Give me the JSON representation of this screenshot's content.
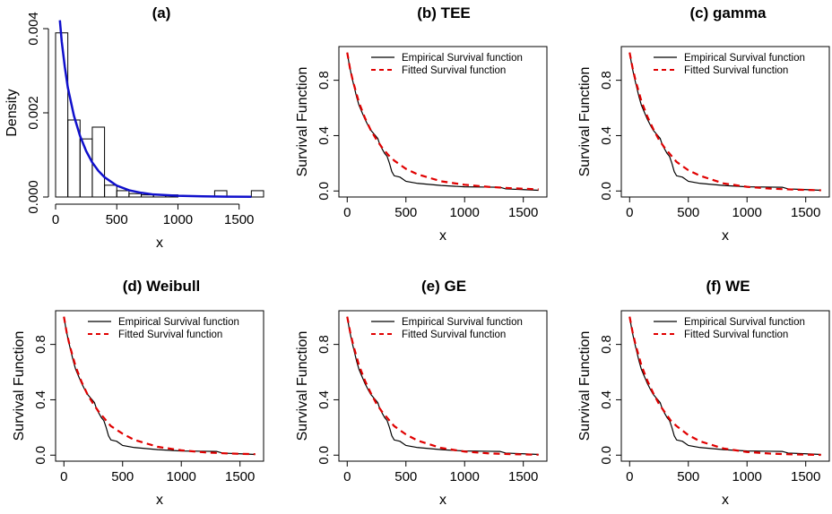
{
  "colors": {
    "empirical": "#000000",
    "fitted": "#e00000",
    "density": "#1010cc",
    "bars": "#000000"
  },
  "chart_data": [
    {
      "id": "a",
      "type": "histogram",
      "title": "(a)",
      "xlabel": "x",
      "ylabel": "Density",
      "xlim": [
        0,
        1700
      ],
      "ylim": [
        0,
        0.004
      ],
      "xticks": [
        0,
        500,
        1000,
        1500
      ],
      "yticks": [
        0.0,
        0.002,
        0.004
      ],
      "ytick_labels": [
        "0.000",
        "0.002",
        "0.004"
      ],
      "bins": [
        {
          "x0": 0,
          "x1": 100,
          "density": 0.0039
        },
        {
          "x0": 100,
          "x1": 200,
          "density": 0.00183
        },
        {
          "x0": 200,
          "x1": 300,
          "density": 0.00138
        },
        {
          "x0": 300,
          "x1": 400,
          "density": 0.00166
        },
        {
          "x0": 400,
          "x1": 500,
          "density": 0.00028
        },
        {
          "x0": 500,
          "x1": 600,
          "density": 0.00015
        },
        {
          "x0": 600,
          "x1": 700,
          "density": 8e-05
        },
        {
          "x0": 700,
          "x1": 800,
          "density": 5e-05
        },
        {
          "x0": 800,
          "x1": 900,
          "density": 5e-05
        },
        {
          "x0": 900,
          "x1": 1000,
          "density": 5e-05
        },
        {
          "x0": 1300,
          "x1": 1400,
          "density": 0.00015
        },
        {
          "x0": 1600,
          "x1": 1700,
          "density": 0.00015
        }
      ],
      "density_curve": {
        "x": [
          35,
          50,
          75,
          100,
          150,
          200,
          250,
          300,
          350,
          400,
          500,
          600,
          700,
          800,
          1000,
          1200,
          1400,
          1600
        ],
        "y": [
          0.0042,
          0.0037,
          0.0031,
          0.0026,
          0.00193,
          0.00145,
          0.00109,
          0.00082,
          0.00062,
          0.00047,
          0.00027,
          0.00016,
          0.0001,
          6e-05,
          3e-05,
          1.5e-05,
          8e-06,
          4e-06
        ]
      }
    },
    {
      "id": "b",
      "type": "line",
      "title": "(b) TEE",
      "xlabel": "x",
      "ylabel": "Survival Function",
      "xlim": [
        0,
        1630
      ],
      "ylim": [
        0,
        1
      ],
      "xticks": [
        0,
        500,
        1000,
        1500
      ],
      "yticks": [
        0.0,
        0.4,
        0.8
      ],
      "ytick_labels": [
        "0.0",
        "0.4",
        "0.8"
      ],
      "legend": [
        "Empirical Survival function",
        "Fitted Survival function"
      ],
      "legend_position": "top-right",
      "series": [
        {
          "name": "Empirical Survival function",
          "style": "solid",
          "x": [
            0,
            20,
            40,
            60,
            80,
            100,
            120,
            150,
            180,
            200,
            230,
            260,
            280,
            300,
            320,
            340,
            360,
            380,
            400,
            450,
            500,
            600,
            800,
            1000,
            1200,
            1300,
            1350,
            1500,
            1630
          ],
          "y": [
            1.0,
            0.9,
            0.82,
            0.75,
            0.68,
            0.62,
            0.58,
            0.52,
            0.47,
            0.44,
            0.41,
            0.38,
            0.33,
            0.3,
            0.27,
            0.25,
            0.2,
            0.14,
            0.11,
            0.1,
            0.07,
            0.055,
            0.04,
            0.03,
            0.028,
            0.027,
            0.015,
            0.01,
            0.005
          ]
        },
        {
          "name": "Fitted Survival function",
          "style": "dashed",
          "x": [
            0,
            25,
            50,
            100,
            150,
            200,
            250,
            300,
            350,
            400,
            500,
            600,
            800,
            1000,
            1200,
            1400,
            1630
          ],
          "y": [
            1.0,
            0.88,
            0.79,
            0.64,
            0.53,
            0.44,
            0.37,
            0.31,
            0.26,
            0.22,
            0.16,
            0.12,
            0.07,
            0.045,
            0.03,
            0.02,
            0.012
          ]
        }
      ]
    },
    {
      "id": "c",
      "type": "line",
      "title": "(c) gamma",
      "xlabel": "x",
      "ylabel": "Survival Function",
      "xlim": [
        0,
        1630
      ],
      "ylim": [
        0,
        1
      ],
      "xticks": [
        0,
        500,
        1000,
        1500
      ],
      "yticks": [
        0.0,
        0.4,
        0.8
      ],
      "ytick_labels": [
        "0.0",
        "0.4",
        "0.8"
      ],
      "legend": [
        "Empirical Survival function",
        "Fitted Survival function"
      ],
      "legend_position": "top-right",
      "series": [
        {
          "name": "Empirical Survival function",
          "style": "solid",
          "x": [
            0,
            20,
            40,
            60,
            80,
            100,
            120,
            150,
            180,
            200,
            230,
            260,
            280,
            300,
            320,
            340,
            360,
            380,
            400,
            450,
            500,
            600,
            800,
            1000,
            1200,
            1300,
            1350,
            1500,
            1630
          ],
          "y": [
            1.0,
            0.9,
            0.82,
            0.75,
            0.68,
            0.62,
            0.58,
            0.52,
            0.47,
            0.44,
            0.41,
            0.38,
            0.33,
            0.3,
            0.27,
            0.25,
            0.2,
            0.14,
            0.11,
            0.1,
            0.07,
            0.055,
            0.04,
            0.03,
            0.028,
            0.027,
            0.015,
            0.01,
            0.005
          ]
        },
        {
          "name": "Fitted Survival function",
          "style": "dashed",
          "x": [
            0,
            25,
            50,
            100,
            150,
            200,
            250,
            300,
            350,
            400,
            500,
            600,
            800,
            1000,
            1200,
            1400,
            1630
          ],
          "y": [
            1.0,
            0.89,
            0.8,
            0.65,
            0.54,
            0.45,
            0.37,
            0.31,
            0.26,
            0.21,
            0.15,
            0.11,
            0.055,
            0.03,
            0.017,
            0.01,
            0.005
          ]
        }
      ]
    },
    {
      "id": "d",
      "type": "line",
      "title": "(d) Weibull",
      "xlabel": "x",
      "ylabel": "Survival Function",
      "xlim": [
        0,
        1630
      ],
      "ylim": [
        0,
        1
      ],
      "xticks": [
        0,
        500,
        1000,
        1500
      ],
      "yticks": [
        0.0,
        0.4,
        0.8
      ],
      "ytick_labels": [
        "0.0",
        "0.4",
        "0.8"
      ],
      "legend": [
        "Empirical Survival function",
        "Fitted Survival function"
      ],
      "legend_position": "top-right",
      "series": [
        {
          "name": "Empirical Survival function",
          "style": "solid",
          "x": [
            0,
            20,
            40,
            60,
            80,
            100,
            120,
            150,
            180,
            200,
            230,
            260,
            280,
            300,
            320,
            340,
            360,
            380,
            400,
            450,
            500,
            600,
            800,
            1000,
            1200,
            1300,
            1350,
            1500,
            1630
          ],
          "y": [
            1.0,
            0.9,
            0.82,
            0.75,
            0.68,
            0.62,
            0.58,
            0.52,
            0.47,
            0.44,
            0.41,
            0.38,
            0.33,
            0.3,
            0.27,
            0.25,
            0.2,
            0.14,
            0.11,
            0.1,
            0.07,
            0.055,
            0.04,
            0.03,
            0.028,
            0.027,
            0.015,
            0.01,
            0.005
          ]
        },
        {
          "name": "Fitted Survival function",
          "style": "dashed",
          "x": [
            0,
            25,
            50,
            100,
            150,
            200,
            250,
            300,
            350,
            400,
            500,
            600,
            800,
            1000,
            1200,
            1400,
            1630
          ],
          "y": [
            1.0,
            0.88,
            0.79,
            0.64,
            0.53,
            0.44,
            0.37,
            0.31,
            0.26,
            0.21,
            0.155,
            0.11,
            0.06,
            0.035,
            0.02,
            0.012,
            0.007
          ]
        }
      ]
    },
    {
      "id": "e",
      "type": "line",
      "title": "(e) GE",
      "xlabel": "x",
      "ylabel": "Survival Function",
      "xlim": [
        0,
        1630
      ],
      "ylim": [
        0,
        1
      ],
      "xticks": [
        0,
        500,
        1000,
        1500
      ],
      "yticks": [
        0.0,
        0.4,
        0.8
      ],
      "ytick_labels": [
        "0.0",
        "0.4",
        "0.8"
      ],
      "legend": [
        "Empirical Survival function",
        "Fitted Survival function"
      ],
      "legend_position": "top-right",
      "series": [
        {
          "name": "Empirical Survival function",
          "style": "solid",
          "x": [
            0,
            20,
            40,
            60,
            80,
            100,
            120,
            150,
            180,
            200,
            230,
            260,
            280,
            300,
            320,
            340,
            360,
            380,
            400,
            450,
            500,
            600,
            800,
            1000,
            1200,
            1300,
            1350,
            1500,
            1630
          ],
          "y": [
            1.0,
            0.9,
            0.82,
            0.75,
            0.68,
            0.62,
            0.58,
            0.52,
            0.47,
            0.44,
            0.41,
            0.38,
            0.33,
            0.3,
            0.27,
            0.25,
            0.2,
            0.14,
            0.11,
            0.1,
            0.07,
            0.055,
            0.04,
            0.03,
            0.028,
            0.027,
            0.015,
            0.01,
            0.005
          ]
        },
        {
          "name": "Fitted Survival function",
          "style": "dashed",
          "x": [
            0,
            25,
            50,
            100,
            150,
            200,
            250,
            300,
            350,
            400,
            500,
            600,
            800,
            1000,
            1200,
            1400,
            1630
          ],
          "y": [
            1.0,
            0.89,
            0.8,
            0.65,
            0.54,
            0.45,
            0.37,
            0.31,
            0.26,
            0.21,
            0.15,
            0.105,
            0.052,
            0.026,
            0.013,
            0.007,
            0.003
          ]
        }
      ]
    },
    {
      "id": "f",
      "type": "line",
      "title": "(f) WE",
      "xlabel": "x",
      "ylabel": "Survival Function",
      "xlim": [
        0,
        1630
      ],
      "ylim": [
        0,
        1
      ],
      "xticks": [
        0,
        500,
        1000,
        1500
      ],
      "yticks": [
        0.0,
        0.4,
        0.8
      ],
      "ytick_labels": [
        "0.0",
        "0.4",
        "0.8"
      ],
      "legend": [
        "Empirical Survival function",
        "Fitted Survival function"
      ],
      "legend_position": "top-right",
      "series": [
        {
          "name": "Empirical Survival function",
          "style": "solid",
          "x": [
            0,
            20,
            40,
            60,
            80,
            100,
            120,
            150,
            180,
            200,
            230,
            260,
            280,
            300,
            320,
            340,
            360,
            380,
            400,
            450,
            500,
            600,
            800,
            1000,
            1200,
            1300,
            1350,
            1500,
            1630
          ],
          "y": [
            1.0,
            0.9,
            0.82,
            0.75,
            0.68,
            0.62,
            0.58,
            0.52,
            0.47,
            0.44,
            0.41,
            0.38,
            0.33,
            0.3,
            0.27,
            0.25,
            0.2,
            0.14,
            0.11,
            0.1,
            0.07,
            0.055,
            0.04,
            0.03,
            0.028,
            0.027,
            0.015,
            0.01,
            0.005
          ]
        },
        {
          "name": "Fitted Survival function",
          "style": "dashed",
          "x": [
            0,
            25,
            50,
            100,
            150,
            200,
            250,
            300,
            350,
            400,
            500,
            600,
            800,
            1000,
            1200,
            1400,
            1630
          ],
          "y": [
            1.0,
            0.89,
            0.8,
            0.65,
            0.54,
            0.45,
            0.37,
            0.31,
            0.25,
            0.21,
            0.145,
            0.1,
            0.048,
            0.023,
            0.011,
            0.005,
            0.002
          ]
        }
      ]
    }
  ]
}
